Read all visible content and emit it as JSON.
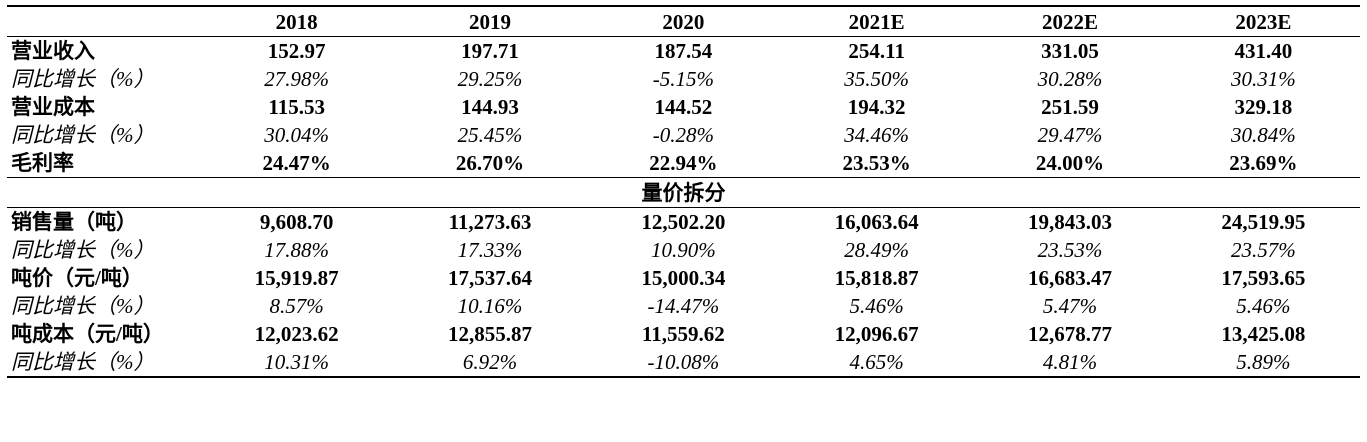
{
  "columns": [
    "",
    "2018",
    "2019",
    "2020",
    "2021E",
    "2022E",
    "2023E"
  ],
  "rows_top": [
    {
      "label": "营业收入",
      "style": "bold",
      "values": [
        "152.97",
        "197.71",
        "187.54",
        "254.11",
        "331.05",
        "431.40"
      ]
    },
    {
      "label": "同比增长（%）",
      "style": "italic",
      "values": [
        "27.98%",
        "29.25%",
        "-5.15%",
        "35.50%",
        "30.28%",
        "30.31%"
      ]
    },
    {
      "label": "营业成本",
      "style": "bold",
      "values": [
        "115.53",
        "144.93",
        "144.52",
        "194.32",
        "251.59",
        "329.18"
      ]
    },
    {
      "label": "同比增长（%）",
      "style": "italic",
      "values": [
        "30.04%",
        "25.45%",
        "-0.28%",
        "34.46%",
        "29.47%",
        "30.84%"
      ]
    },
    {
      "label": "毛利率",
      "style": "bold",
      "values": [
        "24.47%",
        "26.70%",
        "22.94%",
        "23.53%",
        "24.00%",
        "23.69%"
      ]
    }
  ],
  "section_title": "量价拆分",
  "rows_bottom": [
    {
      "label": "销售量（吨）",
      "style": "bold",
      "values": [
        "9,608.70",
        "11,273.63",
        "12,502.20",
        "16,063.64",
        "19,843.03",
        "24,519.95"
      ]
    },
    {
      "label": "同比增长（%）",
      "style": "italic",
      "values": [
        "17.88%",
        "17.33%",
        "10.90%",
        "28.49%",
        "23.53%",
        "23.57%"
      ]
    },
    {
      "label": "吨价（元/吨）",
      "style": "bold",
      "values": [
        "15,919.87",
        "17,537.64",
        "15,000.34",
        "15,818.87",
        "16,683.47",
        "17,593.65"
      ]
    },
    {
      "label": "同比增长（%）",
      "style": "italic",
      "values": [
        "8.57%",
        "10.16%",
        "-14.47%",
        "5.46%",
        "5.47%",
        "5.46%"
      ]
    },
    {
      "label": "吨成本（元/吨）",
      "style": "bold",
      "values": [
        "12,023.62",
        "12,855.87",
        "11,559.62",
        "12,096.67",
        "12,678.77",
        "13,425.08"
      ]
    },
    {
      "label": "同比增长（%）",
      "style": "italic",
      "values": [
        "10.31%",
        "6.92%",
        "-10.08%",
        "4.65%",
        "4.81%",
        "5.89%"
      ]
    }
  ]
}
